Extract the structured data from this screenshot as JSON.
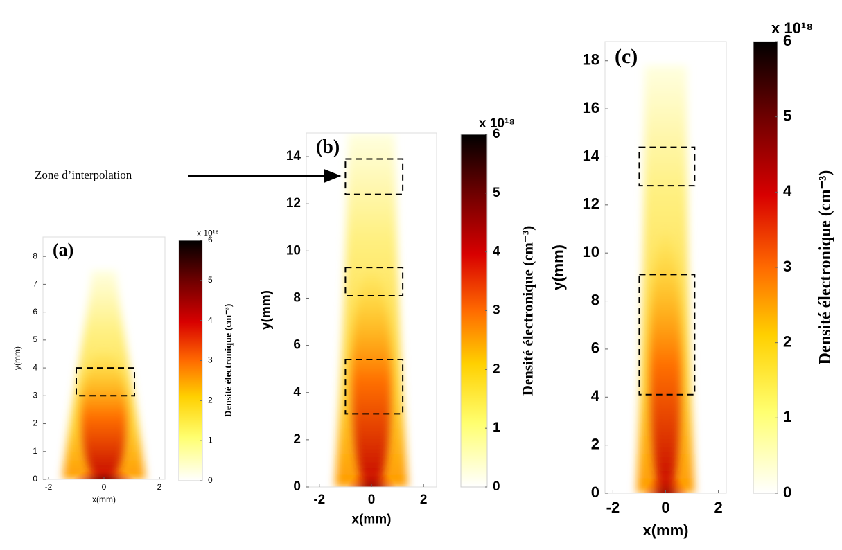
{
  "annotation": "Zone d’interpolation",
  "chart_data": [
    {
      "type": "heatmap",
      "panel_label": "(a)",
      "xlabel": "x(mm)",
      "ylabel": "y(mm)",
      "xlim": [
        -2.2,
        2.2
      ],
      "ylim": [
        0,
        8.7
      ],
      "xticks": [
        -2,
        0,
        2
      ],
      "yticks": [
        0,
        1,
        2,
        3,
        4,
        5,
        6,
        7,
        8
      ],
      "colorbar_label": "Densité électronique (cm⁻³)",
      "colorbar_multiplier": "x 10¹⁸",
      "clim": [
        0,
        6
      ],
      "cticks": [
        0,
        1,
        2,
        3,
        4,
        5,
        6
      ],
      "regions": [
        {
          "x": [
            -1,
            1.1
          ],
          "y": [
            3,
            4
          ]
        }
      ]
    },
    {
      "type": "heatmap",
      "panel_label": "(b)",
      "xlabel": "x(mm)",
      "ylabel": "y(mm)",
      "xlim": [
        -2.5,
        2.5
      ],
      "ylim": [
        0,
        15
      ],
      "xticks": [
        -2,
        0,
        2
      ],
      "yticks": [
        0,
        2,
        4,
        6,
        8,
        10,
        12,
        14
      ],
      "colorbar_label": "Densité électronique (cm⁻³)",
      "colorbar_multiplier": "x 10¹⁸",
      "clim": [
        0,
        6
      ],
      "cticks": [
        0,
        1,
        2,
        3,
        4,
        5,
        6
      ],
      "regions": [
        {
          "x": [
            -1,
            1.2
          ],
          "y": [
            12.4,
            13.9
          ]
        },
        {
          "x": [
            -1,
            1.2
          ],
          "y": [
            8.1,
            9.3
          ]
        },
        {
          "x": [
            -1,
            1.2
          ],
          "y": [
            3.1,
            5.4
          ]
        }
      ]
    },
    {
      "type": "heatmap",
      "panel_label": "(c)",
      "xlabel": "x(mm)",
      "ylabel": "y(mm)",
      "xlim": [
        -2.3,
        2.3
      ],
      "ylim": [
        0,
        18.8
      ],
      "xticks": [
        -2,
        0,
        2
      ],
      "yticks": [
        0,
        2,
        4,
        6,
        8,
        10,
        12,
        14,
        16,
        18
      ],
      "colorbar_label": "Densité électronique (cm⁻³)",
      "colorbar_multiplier": "x 10¹⁸",
      "clim": [
        0,
        6
      ],
      "cticks": [
        0,
        1,
        2,
        3,
        4,
        5,
        6
      ],
      "regions": [
        {
          "x": [
            -1,
            1.1
          ],
          "y": [
            12.8,
            14.4
          ]
        },
        {
          "x": [
            -1,
            1.1
          ],
          "y": [
            4.1,
            9.1
          ]
        }
      ]
    }
  ]
}
